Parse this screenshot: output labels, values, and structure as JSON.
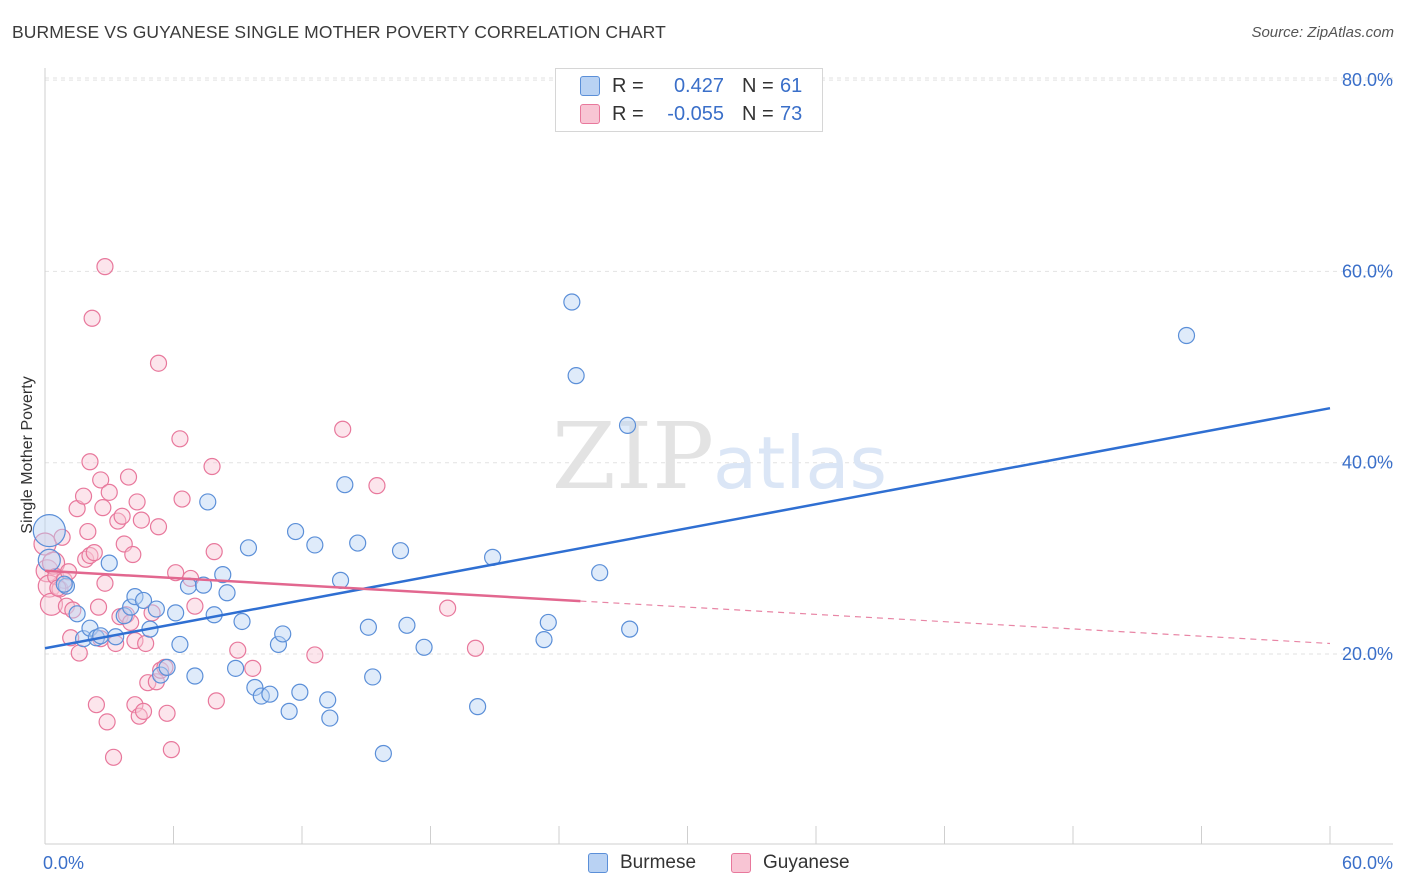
{
  "title": "BURMESE VS GUYANESE SINGLE MOTHER POVERTY CORRELATION CHART",
  "source": "Source: ZipAtlas.com",
  "watermark": {
    "zip": "ZIP",
    "atlas": "atlas"
  },
  "legend": {
    "rows": [
      {
        "r_label": "R =",
        "r_value": "0.427",
        "n_label": "N =",
        "n_value": "61"
      },
      {
        "r_label": "R =",
        "r_value": "-0.055",
        "n_label": "N =",
        "n_value": "73"
      }
    ]
  },
  "colors": {
    "burmese_fill": "#b9d2f3",
    "burmese_stroke": "#5b8fd8",
    "burmese_line": "#2f6fd2",
    "guyanese_fill": "#f8c5d4",
    "guyanese_stroke": "#e8789c",
    "guyanese_line": "#e2678f",
    "axis_label": "#3a6fc9",
    "grid": "#e2e2e2"
  },
  "chart_data": {
    "type": "scatter",
    "title": "BURMESE VS GUYANESE SINGLE MOTHER POVERTY CORRELATION CHART",
    "xlabel": "",
    "ylabel": "Single Mother Poverty",
    "xlim": [
      0,
      60
    ],
    "ylim": [
      0,
      82
    ],
    "x_tick_labels": [
      "0.0%",
      "60.0%"
    ],
    "y_ticks": [
      20,
      40,
      60,
      80
    ],
    "y_tick_labels": [
      "20.0%",
      "40.0%",
      "60.0%",
      "80.0%"
    ],
    "series": [
      {
        "name": "Burmese",
        "r": 0.427,
        "n": 61,
        "trend": {
          "x0": 0,
          "y0": 20.6,
          "x1": 60,
          "y1": 45.7,
          "dashed_from": null
        },
        "points": [
          [
            0.2,
            32.9,
            "L"
          ],
          [
            0.2,
            29.8,
            "M"
          ],
          [
            1.0,
            27.1,
            "S"
          ],
          [
            1.5,
            24.2,
            "S"
          ],
          [
            1.8,
            21.6,
            "S"
          ],
          [
            2.1,
            22.7,
            "S"
          ],
          [
            2.4,
            21.7,
            "S"
          ],
          [
            2.6,
            21.9,
            "S"
          ],
          [
            3.0,
            29.5,
            "S"
          ],
          [
            3.3,
            21.8,
            "S"
          ],
          [
            3.7,
            24.0,
            "S"
          ],
          [
            4.0,
            24.9,
            "S"
          ],
          [
            4.2,
            26.0,
            "S"
          ],
          [
            4.6,
            25.6,
            "S"
          ],
          [
            4.9,
            22.6,
            "S"
          ],
          [
            5.2,
            24.7,
            "S"
          ],
          [
            5.4,
            17.8,
            "S"
          ],
          [
            5.7,
            18.6,
            "S"
          ],
          [
            6.1,
            24.3,
            "S"
          ],
          [
            6.3,
            21.0,
            "S"
          ],
          [
            6.7,
            27.1,
            "S"
          ],
          [
            7.0,
            17.7,
            "S"
          ],
          [
            7.4,
            27.2,
            "S"
          ],
          [
            7.6,
            35.9,
            "S"
          ],
          [
            7.9,
            24.1,
            "S"
          ],
          [
            8.3,
            28.3,
            "S"
          ],
          [
            8.5,
            26.4,
            "S"
          ],
          [
            8.9,
            18.5,
            "S"
          ],
          [
            9.2,
            23.4,
            "S"
          ],
          [
            9.5,
            31.1,
            "S"
          ],
          [
            9.8,
            16.5,
            "S"
          ],
          [
            10.1,
            15.6,
            "S"
          ],
          [
            10.5,
            15.8,
            "S"
          ],
          [
            10.9,
            21.0,
            "S"
          ],
          [
            11.1,
            22.1,
            "S"
          ],
          [
            11.4,
            14.0,
            "S"
          ],
          [
            11.7,
            32.8,
            "S"
          ],
          [
            11.9,
            16.0,
            "S"
          ],
          [
            12.6,
            31.4,
            "S"
          ],
          [
            13.2,
            15.2,
            "S"
          ],
          [
            13.3,
            13.3,
            "S"
          ],
          [
            13.8,
            27.7,
            "S"
          ],
          [
            14.0,
            37.7,
            "S"
          ],
          [
            14.6,
            31.6,
            "S"
          ],
          [
            15.1,
            22.8,
            "S"
          ],
          [
            15.3,
            17.6,
            "S"
          ],
          [
            15.8,
            9.6,
            "S"
          ],
          [
            16.6,
            30.8,
            "S"
          ],
          [
            16.9,
            23.0,
            "S"
          ],
          [
            17.7,
            20.7,
            "S"
          ],
          [
            20.2,
            14.5,
            "S"
          ],
          [
            20.9,
            30.1,
            "S"
          ],
          [
            23.3,
            21.5,
            "S"
          ],
          [
            23.5,
            23.3,
            "S"
          ],
          [
            24.6,
            56.8,
            "S"
          ],
          [
            24.8,
            49.1,
            "S"
          ],
          [
            25.9,
            28.5,
            "S"
          ],
          [
            27.2,
            43.9,
            "S"
          ],
          [
            27.3,
            22.6,
            "S"
          ],
          [
            53.3,
            53.3,
            "S"
          ],
          [
            0.9,
            27.3,
            "S"
          ]
        ]
      },
      {
        "name": "Guyanese",
        "r": -0.055,
        "n": 73,
        "trend": {
          "x0": 0,
          "y0": 28.7,
          "x1": 60,
          "y1": 21.1,
          "dashed_from": 25
        },
        "points": [
          [
            0.0,
            31.5,
            "M"
          ],
          [
            0.1,
            28.7,
            "M"
          ],
          [
            0.2,
            27.1,
            "M"
          ],
          [
            0.3,
            25.2,
            "M"
          ],
          [
            0.4,
            29.5,
            "M"
          ],
          [
            0.5,
            28.1,
            "S"
          ],
          [
            0.7,
            26.8,
            "S"
          ],
          [
            0.8,
            32.2,
            "S"
          ],
          [
            0.9,
            27.7,
            "S"
          ],
          [
            1.0,
            25.0,
            "S"
          ],
          [
            1.1,
            28.6,
            "S"
          ],
          [
            1.2,
            21.7,
            "S"
          ],
          [
            1.3,
            24.6,
            "S"
          ],
          [
            1.5,
            35.2,
            "S"
          ],
          [
            1.6,
            20.1,
            "S"
          ],
          [
            1.8,
            36.5,
            "S"
          ],
          [
            1.9,
            29.9,
            "S"
          ],
          [
            2.0,
            32.8,
            "S"
          ],
          [
            2.1,
            30.3,
            "S"
          ],
          [
            2.1,
            40.1,
            "S"
          ],
          [
            2.2,
            55.1,
            "S"
          ],
          [
            2.3,
            30.6,
            "S"
          ],
          [
            2.4,
            14.7,
            "S"
          ],
          [
            2.5,
            24.9,
            "S"
          ],
          [
            2.6,
            21.6,
            "S"
          ],
          [
            2.6,
            38.2,
            "S"
          ],
          [
            2.7,
            35.3,
            "S"
          ],
          [
            2.8,
            27.4,
            "S"
          ],
          [
            2.8,
            60.5,
            "S"
          ],
          [
            2.9,
            12.9,
            "S"
          ],
          [
            3.0,
            36.9,
            "S"
          ],
          [
            3.2,
            9.2,
            "S"
          ],
          [
            3.3,
            21.1,
            "S"
          ],
          [
            3.4,
            33.9,
            "S"
          ],
          [
            3.5,
            23.9,
            "S"
          ],
          [
            3.6,
            34.4,
            "S"
          ],
          [
            3.7,
            31.5,
            "S"
          ],
          [
            3.8,
            24.1,
            "S"
          ],
          [
            3.9,
            38.5,
            "S"
          ],
          [
            4.0,
            23.3,
            "S"
          ],
          [
            4.1,
            30.4,
            "S"
          ],
          [
            4.2,
            21.4,
            "S"
          ],
          [
            4.2,
            14.7,
            "S"
          ],
          [
            4.3,
            35.9,
            "S"
          ],
          [
            4.4,
            13.5,
            "S"
          ],
          [
            4.5,
            34.0,
            "S"
          ],
          [
            4.6,
            14.0,
            "S"
          ],
          [
            4.7,
            21.1,
            "S"
          ],
          [
            4.8,
            17.0,
            "S"
          ],
          [
            5.0,
            24.3,
            "S"
          ],
          [
            5.2,
            17.1,
            "S"
          ],
          [
            5.3,
            50.4,
            "S"
          ],
          [
            5.3,
            33.3,
            "S"
          ],
          [
            5.4,
            18.3,
            "S"
          ],
          [
            5.6,
            18.6,
            "S"
          ],
          [
            5.7,
            13.8,
            "S"
          ],
          [
            5.9,
            10.0,
            "S"
          ],
          [
            6.1,
            28.5,
            "S"
          ],
          [
            6.3,
            42.5,
            "S"
          ],
          [
            6.4,
            36.2,
            "S"
          ],
          [
            6.8,
            27.9,
            "S"
          ],
          [
            7.0,
            25.0,
            "S"
          ],
          [
            7.8,
            39.6,
            "S"
          ],
          [
            7.9,
            30.7,
            "S"
          ],
          [
            8.0,
            15.1,
            "S"
          ],
          [
            9.0,
            20.4,
            "S"
          ],
          [
            9.7,
            18.5,
            "S"
          ],
          [
            12.6,
            19.9,
            "S"
          ],
          [
            13.9,
            43.5,
            "S"
          ],
          [
            15.5,
            37.6,
            "S"
          ],
          [
            18.8,
            24.8,
            "S"
          ],
          [
            20.1,
            20.6,
            "S"
          ],
          [
            0.6,
            26.9,
            "S"
          ]
        ]
      }
    ]
  },
  "bottom_legend": [
    {
      "label": "Burmese"
    },
    {
      "label": "Guyanese"
    }
  ]
}
